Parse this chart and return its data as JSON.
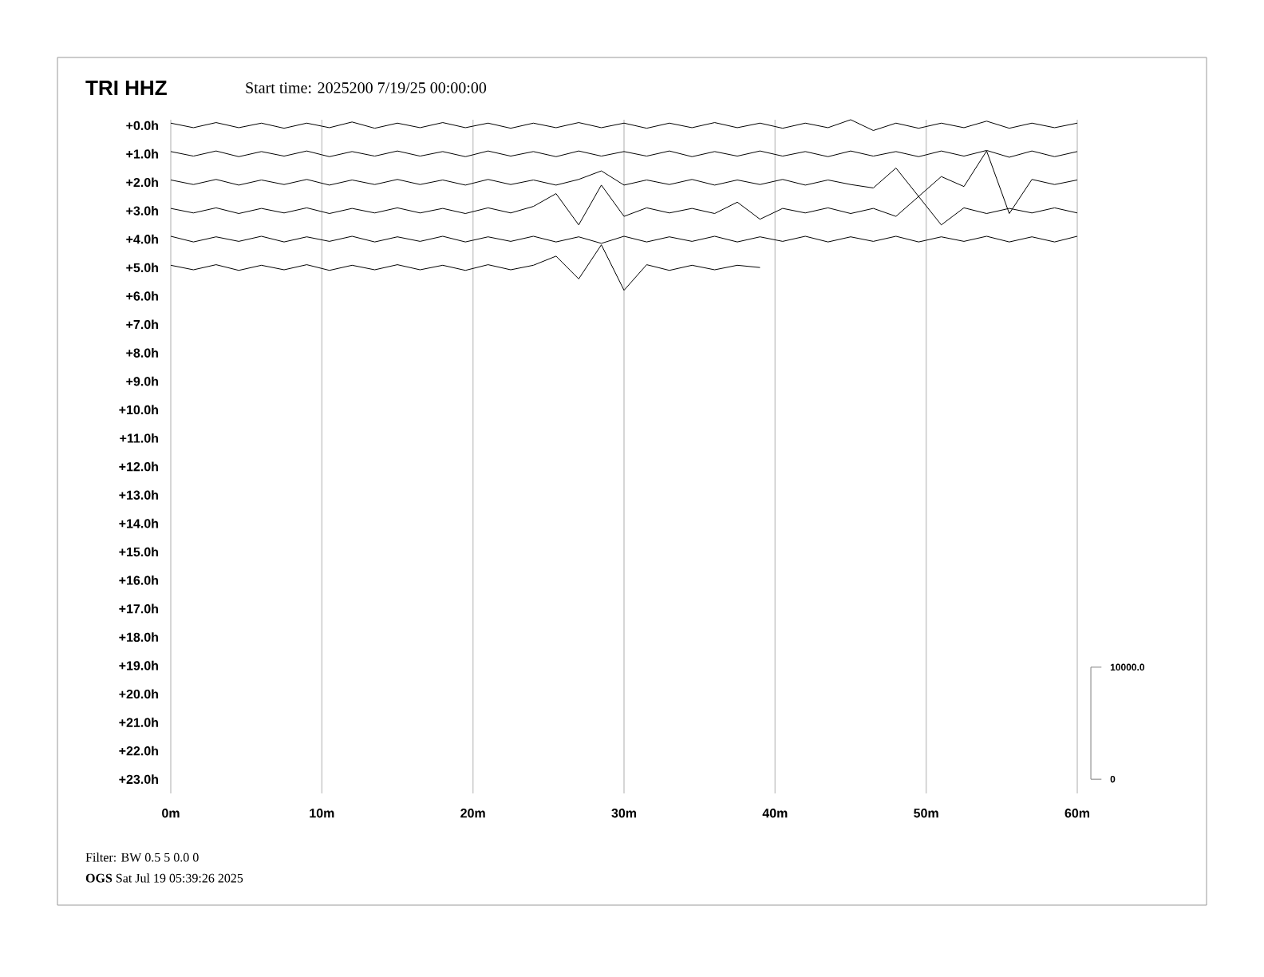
{
  "chart_data": {
    "type": "line",
    "title": "TRI HHZ",
    "subtitle": "Start time: 2025200  7/19/25 00:00:00",
    "annotations": [
      "Filter: BW 0.5 5 0.0 0",
      "**OGS**   Sat Jul 19 05:39:26 2025",
      "10000.0",
      "0"
    ],
    "x": [
      0,
      1.5,
      3,
      4.5,
      6,
      7.5,
      9,
      10.5,
      12,
      13.5,
      15,
      16.5,
      18,
      19.5,
      21,
      22.5,
      24,
      25.5,
      27,
      28.5,
      30,
      31.5,
      33,
      34.5,
      36,
      37.5,
      39,
      40.5,
      42,
      43.5,
      45,
      46.5,
      48,
      49.5,
      51,
      52.5,
      54,
      55.5,
      57,
      58.5,
      60
    ],
    "series": [
      {
        "color": "#000000",
        "values": [
          -0.08,
          0.08,
          -0.1,
          0.08,
          -0.08,
          0.1,
          -0.08,
          0.08,
          -0.12,
          0.1,
          -0.08,
          0.08,
          -0.1,
          0.08,
          -0.08,
          0.1,
          -0.08,
          0.08,
          -0.1,
          0.08,
          -0.08,
          0.1,
          -0.08,
          0.08,
          -0.1,
          0.08,
          -0.08,
          0.1,
          -0.08,
          0.08,
          -0.2,
          0.18,
          -0.08,
          0.1,
          -0.08,
          0.08,
          -0.15,
          0.1,
          -0.08,
          0.08,
          -0.08
        ]
      },
      {
        "color": "#000000",
        "values": [
          0.92,
          1.08,
          0.9,
          1.1,
          0.92,
          1.08,
          0.9,
          1.1,
          0.92,
          1.08,
          0.9,
          1.08,
          0.92,
          1.1,
          0.9,
          1.08,
          0.92,
          1.1,
          0.9,
          1.08,
          0.92,
          1.08,
          0.9,
          1.1,
          0.92,
          1.08,
          0.9,
          1.08,
          0.92,
          1.1,
          0.9,
          1.08,
          0.92,
          1.1,
          0.9,
          1.08,
          0.88,
          1.12,
          0.9,
          1.1,
          0.92
        ]
      },
      {
        "color": "#000000",
        "values": [
          1.92,
          2.08,
          1.9,
          2.1,
          1.92,
          2.08,
          1.9,
          2.1,
          1.92,
          2.08,
          1.9,
          2.08,
          1.92,
          2.1,
          1.9,
          2.08,
          1.92,
          2.1,
          1.9,
          1.6,
          2.1,
          1.92,
          2.08,
          1.9,
          2.1,
          1.92,
          2.08,
          1.9,
          2.1,
          1.92,
          2.08,
          2.2,
          1.5,
          2.5,
          1.8,
          2.15,
          0.9,
          3.1,
          1.9,
          2.08,
          1.92
        ]
      },
      {
        "color": "#000000",
        "values": [
          2.92,
          3.08,
          2.9,
          3.1,
          2.92,
          3.08,
          2.9,
          3.1,
          2.92,
          3.08,
          2.9,
          3.08,
          2.92,
          3.1,
          2.9,
          3.08,
          2.85,
          2.4,
          3.5,
          2.1,
          3.2,
          2.9,
          3.08,
          2.92,
          3.1,
          2.7,
          3.3,
          2.92,
          3.08,
          2.9,
          3.1,
          2.92,
          3.2,
          2.5,
          3.5,
          2.9,
          3.1,
          2.92,
          3.08,
          2.9,
          3.08
        ]
      },
      {
        "color": "#000000",
        "values": [
          3.9,
          4.1,
          3.92,
          4.08,
          3.9,
          4.1,
          3.92,
          4.08,
          3.9,
          4.1,
          3.92,
          4.08,
          3.9,
          4.1,
          3.92,
          4.08,
          3.9,
          4.1,
          3.92,
          4.15,
          3.9,
          4.1,
          3.92,
          4.08,
          3.9,
          4.1,
          3.92,
          4.08,
          3.9,
          4.1,
          3.92,
          4.08,
          3.9,
          4.1,
          3.92,
          4.08,
          3.9,
          4.1,
          3.92,
          4.1,
          3.9
        ]
      },
      {
        "color": "#000000",
        "x": [
          0,
          1.5,
          3,
          4.5,
          6,
          7.5,
          9,
          10.5,
          12,
          13.5,
          15,
          16.5,
          18,
          19.5,
          21,
          22.5,
          24,
          25.5,
          27,
          28.5,
          30,
          31.5,
          33,
          34.5,
          36,
          37.5,
          39
        ],
        "values": [
          4.92,
          5.08,
          4.9,
          5.1,
          4.92,
          5.08,
          4.9,
          5.1,
          4.92,
          5.08,
          4.9,
          5.08,
          4.92,
          5.1,
          4.9,
          5.08,
          4.92,
          4.6,
          5.4,
          4.2,
          5.8,
          4.9,
          5.1,
          4.92,
          5.08,
          4.92,
          5.0
        ]
      }
    ],
    "xlim": [
      0,
      60
    ],
    "xticks": [
      {
        "value": 0,
        "label": "0m"
      },
      {
        "value": 10,
        "label": "10m"
      },
      {
        "value": 20,
        "label": "20m"
      },
      {
        "value": 30,
        "label": "30m"
      },
      {
        "value": 40,
        "label": "40m"
      },
      {
        "value": 50,
        "label": "50m"
      },
      {
        "value": 60,
        "label": "60m"
      }
    ],
    "ylim": [
      23.5,
      -0.2
    ],
    "yticks": [
      {
        "value": 0,
        "label": "+0.0h"
      },
      {
        "value": 1,
        "label": "+1.0h"
      },
      {
        "value": 2,
        "label": "+2.0h"
      },
      {
        "value": 3,
        "label": "+3.0h"
      },
      {
        "value": 4,
        "label": "+4.0h"
      },
      {
        "value": 5,
        "label": "+5.0h"
      },
      {
        "value": 6,
        "label": "+6.0h"
      },
      {
        "value": 7,
        "label": "+7.0h"
      },
      {
        "value": 8,
        "label": "+8.0h"
      },
      {
        "value": 9,
        "label": "+9.0h"
      },
      {
        "value": 10,
        "label": "+10.0h"
      },
      {
        "value": 11,
        "label": "+11.0h"
      },
      {
        "value": 12,
        "label": "+12.0h"
      },
      {
        "value": 13,
        "label": "+13.0h"
      },
      {
        "value": 14,
        "label": "+14.0h"
      },
      {
        "value": 15,
        "label": "+15.0h"
      },
      {
        "value": 16,
        "label": "+16.0h"
      },
      {
        "value": 17,
        "label": "+17.0h"
      },
      {
        "value": 18,
        "label": "+18.0h"
      },
      {
        "value": 19,
        "label": "+19.0h"
      },
      {
        "value": 20,
        "label": "+20.0h"
      },
      {
        "value": 21,
        "label": "+21.0h"
      },
      {
        "value": 22,
        "label": "+22.0h"
      },
      {
        "value": 23,
        "label": "+23.0h"
      }
    ],
    "grid": "x",
    "marker": "none",
    "line_style": "solid"
  }
}
